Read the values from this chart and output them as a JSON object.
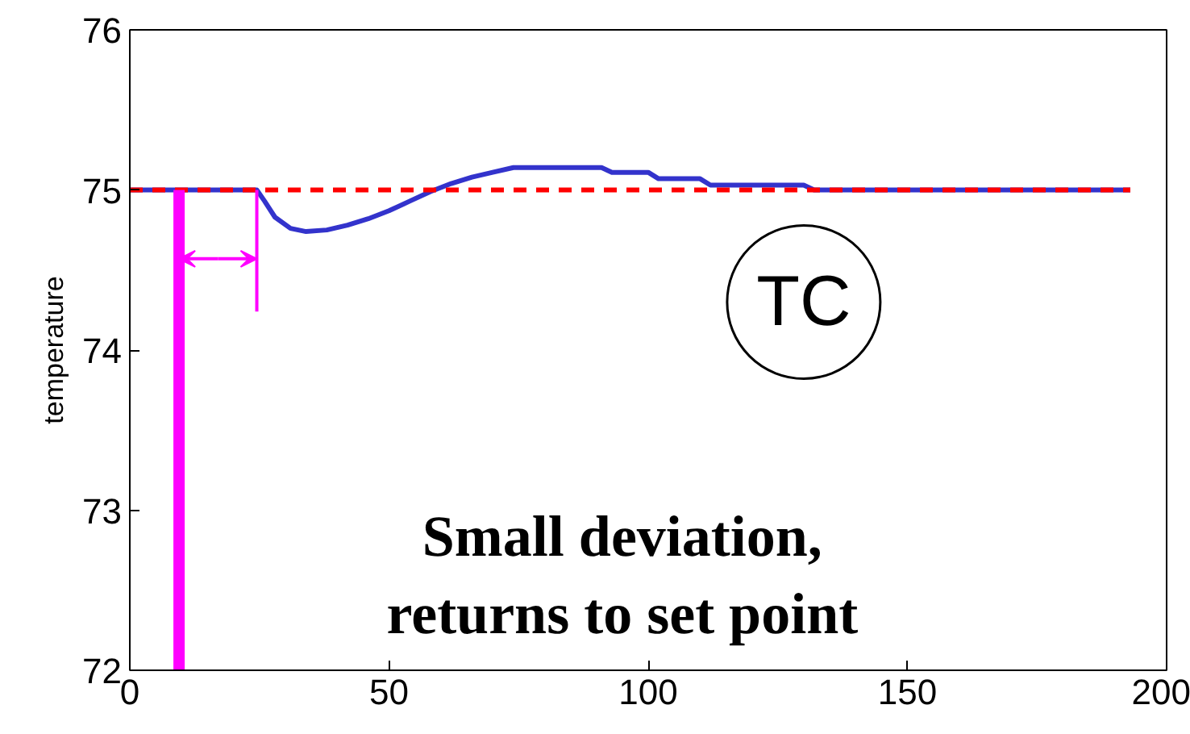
{
  "chart_data": {
    "type": "line",
    "ylabel": "temperature",
    "xlim": [
      0,
      200
    ],
    "ylim": [
      72,
      76
    ],
    "xticks": [
      0,
      50,
      100,
      150,
      200
    ],
    "yticks": [
      72,
      73,
      74,
      75,
      76
    ],
    "grid": false,
    "series": [
      {
        "color": "#3333cc",
        "x": [
          0,
          24.5,
          26,
          28,
          31,
          34,
          38,
          42,
          46,
          50,
          54,
          58,
          62,
          66,
          70,
          74,
          80,
          86,
          91,
          93,
          100,
          102,
          110,
          112,
          130,
          132,
          193
        ],
        "values": [
          75,
          75,
          74.93,
          74.83,
          74.76,
          74.74,
          74.75,
          74.78,
          74.82,
          74.87,
          74.93,
          74.99,
          75.04,
          75.08,
          75.11,
          75.14,
          75.14,
          75.14,
          75.14,
          75.11,
          75.11,
          75.07,
          75.07,
          75.03,
          75.03,
          75.0,
          75.0
        ]
      },
      {
        "color": "#ff0000",
        "line_style": "dashed",
        "x": [
          0,
          193
        ],
        "values": [
          75,
          75
        ]
      },
      {
        "color": "#ff00ff",
        "x": [
          9.5,
          9.5
        ],
        "values": [
          72,
          75
        ]
      },
      {
        "color": "#ff00ff",
        "x": [
          24.5,
          24.5
        ],
        "values": [
          74.24,
          75
        ]
      }
    ],
    "annotations": [
      "TC",
      "Small deviation,\nreturns to set point"
    ]
  }
}
